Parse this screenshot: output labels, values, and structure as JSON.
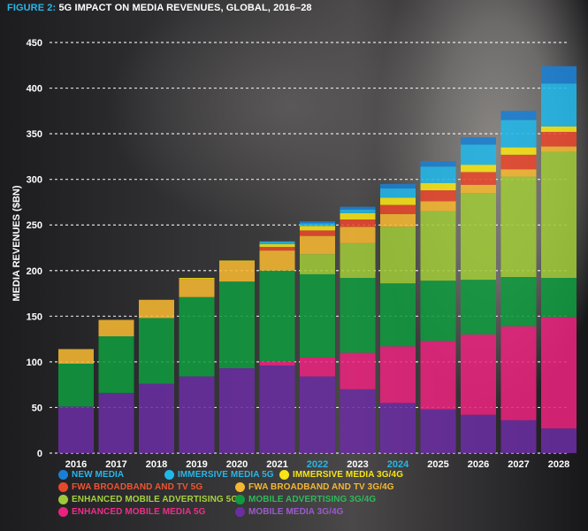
{
  "figure": {
    "label": "FIGURE 2:",
    "title": "5G IMPACT ON MEDIA REVENUES, GLOBAL, 2016–28"
  },
  "chart_data": {
    "type": "bar",
    "stacked": true,
    "ylabel": "MEDIA REVENUES ($BN)",
    "xlabel": "",
    "ylim": [
      0,
      450
    ],
    "yticks": [
      0,
      50,
      100,
      150,
      200,
      250,
      300,
      350,
      400,
      450
    ],
    "grid": "horizontal dashed",
    "legend_position": "bottom",
    "categories": [
      "2016",
      "2017",
      "2018",
      "2019",
      "2020",
      "2021",
      "2022",
      "2023",
      "2024",
      "2025",
      "2026",
      "2027",
      "2028"
    ],
    "category_colors": [
      "#ffffff",
      "#ffffff",
      "#ffffff",
      "#ffffff",
      "#ffffff",
      "#ffffff",
      "#29b6e8",
      "#ffffff",
      "#29b6e8",
      "#ffffff",
      "#ffffff",
      "#ffffff",
      "#ffffff"
    ],
    "series": [
      {
        "name": "MOBILE MEDIA 3G/4G",
        "color": "#6a2ea1",
        "values": [
          51,
          66,
          76,
          84,
          93,
          96,
          84,
          70,
          55,
          48,
          42,
          36,
          27
        ]
      },
      {
        "name": "ENHANCED MOBILE MEDIA 5G",
        "color": "#e8237d",
        "values": [
          0,
          0,
          0,
          0,
          0,
          4,
          21,
          40,
          62,
          75,
          88,
          103,
          122
        ]
      },
      {
        "name": "MOBILE ADVERTISING 3G/4G",
        "color": "#109a3f",
        "values": [
          47,
          62,
          72,
          87,
          95,
          100,
          91,
          82,
          69,
          66,
          60,
          54,
          43
        ]
      },
      {
        "name": "ENHANCED MOBILE ADVERTISING 5G",
        "color": "#9ec838",
        "values": [
          0,
          0,
          0,
          0,
          0,
          0,
          22,
          38,
          62,
          76,
          95,
          110,
          138
        ]
      },
      {
        "name": "FWA BROADBAND AND TV 3G/4G",
        "color": "#f5b731",
        "values": [
          16,
          18,
          20,
          20,
          22,
          22,
          20,
          18,
          14,
          11,
          9,
          8,
          6
        ]
      },
      {
        "name": "FWA BROADBAND AND TV 5G",
        "color": "#e8472c",
        "values": [
          0,
          0,
          0,
          0,
          0,
          4,
          6,
          8,
          10,
          12,
          14,
          16,
          16
        ]
      },
      {
        "name": "IMMERSIVE MEDIA 3G/4G",
        "color": "#f7e515",
        "values": [
          0,
          0,
          0,
          1,
          1,
          3,
          5,
          7,
          8,
          8,
          8,
          8,
          6
        ]
      },
      {
        "name": "IMMERSIVE MEDIA 5G",
        "color": "#21b7e8",
        "values": [
          0,
          0,
          0,
          0,
          0,
          3,
          3,
          4,
          10,
          18,
          22,
          30,
          47
        ]
      },
      {
        "name": "NEW MEDIA",
        "color": "#1a7fd4",
        "values": [
          0,
          0,
          0,
          0,
          0,
          0,
          2,
          3,
          5,
          6,
          8,
          10,
          19
        ]
      }
    ]
  },
  "legend": [
    {
      "label": "NEW MEDIA",
      "color": "#1a7fd4",
      "text_color": "#29b6e8"
    },
    {
      "label": "IMMERSIVE MEDIA 5G",
      "color": "#21b7e8",
      "text_color": "#29b6e8"
    },
    {
      "label": "IMMERSIVE MEDIA 3G/4G",
      "color": "#f7e515",
      "text_color": "#f7e515"
    },
    {
      "label": "FWA BROADBAND AND TV 5G",
      "color": "#e8472c",
      "text_color": "#f0532e"
    },
    {
      "label": "FWA BROADBAND AND TV 3G/4G",
      "color": "#f5b731",
      "text_color": "#f5b731"
    },
    {
      "label": "ENHANCED MOBILE ADVERTISING 5G",
      "color": "#9ec838",
      "text_color": "#a6d13d"
    },
    {
      "label": "MOBILE ADVERTISING 3G/4G",
      "color": "#109a3f",
      "text_color": "#2fb85a"
    },
    {
      "label": "ENHANCED MOBILE MEDIA 5G",
      "color": "#e8237d",
      "text_color": "#ee2e87"
    },
    {
      "label": "MOBILE MEDIA 3G/4G",
      "color": "#6a2ea1",
      "text_color": "#9b5ad0"
    }
  ]
}
